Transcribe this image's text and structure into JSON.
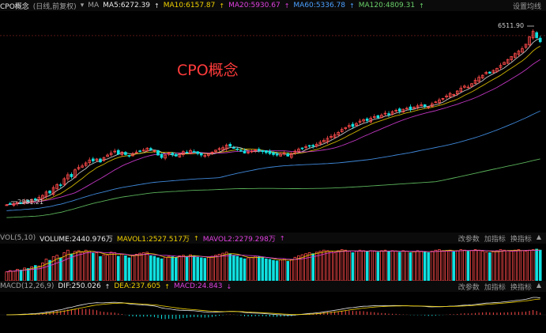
{
  "header": {
    "symbol": "CPO概念",
    "period": "(日线,前复权)",
    "dropdown_icon": "chevron-down-icon",
    "ma_label": "MA",
    "ma5": "MA5:6272.39",
    "ma10": "MA10:6157.87",
    "ma20": "MA20:5930.67",
    "ma60": "MA60:5336.78",
    "ma120": "MA120:4809.31",
    "settings": "设置均线",
    "ma5_color": "#e8e8e8",
    "ma10_color": "#f0d000",
    "ma20_color": "#e040e0",
    "ma60_color": "#4aa0ff",
    "ma120_color": "#6ad06a"
  },
  "watermark": "CPO概念",
  "volume_panel": {
    "indicator": "VOL(5,10)",
    "volume": "VOLUME:2440.976万",
    "mavol1": "MAVOL1:2527.517万",
    "mavol2": "MAVOL2:2279.298万",
    "btn_params": "改参数",
    "btn_add": "加指标",
    "btn_switch": "换指标"
  },
  "macd_panel": {
    "indicator": "MACD(12,26,9)",
    "dif": "DIF:250.026",
    "dea": "DEA:237.605",
    "macd": "MACD:24.843",
    "btn_params": "改参数",
    "btn_add": "加指标",
    "btn_switch": "换指标"
  },
  "chart_data": {
    "type": "candlestick",
    "high_label": "6511.90",
    "low_label": "2981.21",
    "up_color": "#ff4a4a",
    "down_color": "#10e0e0",
    "close": [
      2990,
      3005,
      3015,
      3040,
      3030,
      3070,
      3060,
      3100,
      3090,
      3140,
      3180,
      3250,
      3230,
      3340,
      3400,
      3380,
      3520,
      3600,
      3560,
      3700,
      3750,
      3780,
      3840,
      3900,
      3880,
      3920,
      3860,
      3950,
      4000,
      4040,
      4080,
      4020,
      4060,
      4010,
      3980,
      4030,
      4060,
      4080,
      4100,
      4140,
      4110,
      4090,
      4000,
      3950,
      4000,
      4050,
      4010,
      3980,
      4030,
      4070,
      4050,
      4090,
      4070,
      4030,
      4000,
      3990,
      4020,
      4060,
      4100,
      4130,
      4150,
      4200,
      4180,
      4150,
      4120,
      4080,
      4040,
      4060,
      4080,
      4110,
      4090,
      4070,
      4050,
      4030,
      4010,
      4000,
      4020,
      4040,
      3980,
      4030,
      4080,
      4120,
      4140,
      4170,
      4190,
      4180,
      4220,
      4260,
      4300,
      4340,
      4380,
      4410,
      4460,
      4520,
      4560,
      4600,
      4580,
      4640,
      4690,
      4720,
      4700,
      4750,
      4780,
      4760,
      4810,
      4850,
      4820,
      4880,
      4910,
      4890,
      4930,
      4950,
      4920,
      4970,
      5000,
      5020,
      4990,
      4980,
      5040,
      5080,
      5120,
      5150,
      5200,
      5250,
      5230,
      5300,
      5360,
      5400,
      5380,
      5450,
      5520,
      5580,
      5620,
      5680,
      5660,
      5720,
      5760,
      5820,
      5880,
      5940,
      6000,
      6060,
      6110,
      6160,
      6250,
      6400,
      6511,
      6380,
      6300
    ],
    "volume": [
      35,
      40,
      38,
      45,
      42,
      50,
      48,
      55,
      60,
      58,
      70,
      85,
      80,
      95,
      100,
      90,
      110,
      120,
      105,
      115,
      118,
      112,
      120,
      116,
      108,
      110,
      95,
      102,
      100,
      112,
      110,
      96,
      105,
      98,
      90,
      100,
      104,
      108,
      110,
      112,
      98,
      96,
      90,
      86,
      92,
      96,
      94,
      90,
      98,
      100,
      95,
      102,
      98,
      92,
      90,
      88,
      92,
      96,
      100,
      104,
      108,
      112,
      106,
      100,
      96,
      90,
      86,
      90,
      92,
      96,
      94,
      90,
      86,
      84,
      80,
      78,
      82,
      86,
      76,
      84,
      92,
      98,
      102,
      106,
      110,
      106,
      112,
      116,
      120,
      118,
      116,
      110,
      118,
      122,
      120,
      116,
      110,
      116,
      120,
      118,
      114,
      118,
      116,
      112,
      118,
      120,
      114,
      118,
      116,
      112,
      118,
      116,
      110,
      114,
      118,
      116,
      112,
      110,
      116,
      120,
      122,
      118,
      116,
      120,
      114,
      118,
      122,
      120,
      116,
      118,
      122,
      120,
      116,
      112,
      110,
      114,
      118,
      122,
      120,
      118,
      116,
      120,
      122,
      118,
      116,
      120,
      122,
      124,
      120
    ]
  }
}
